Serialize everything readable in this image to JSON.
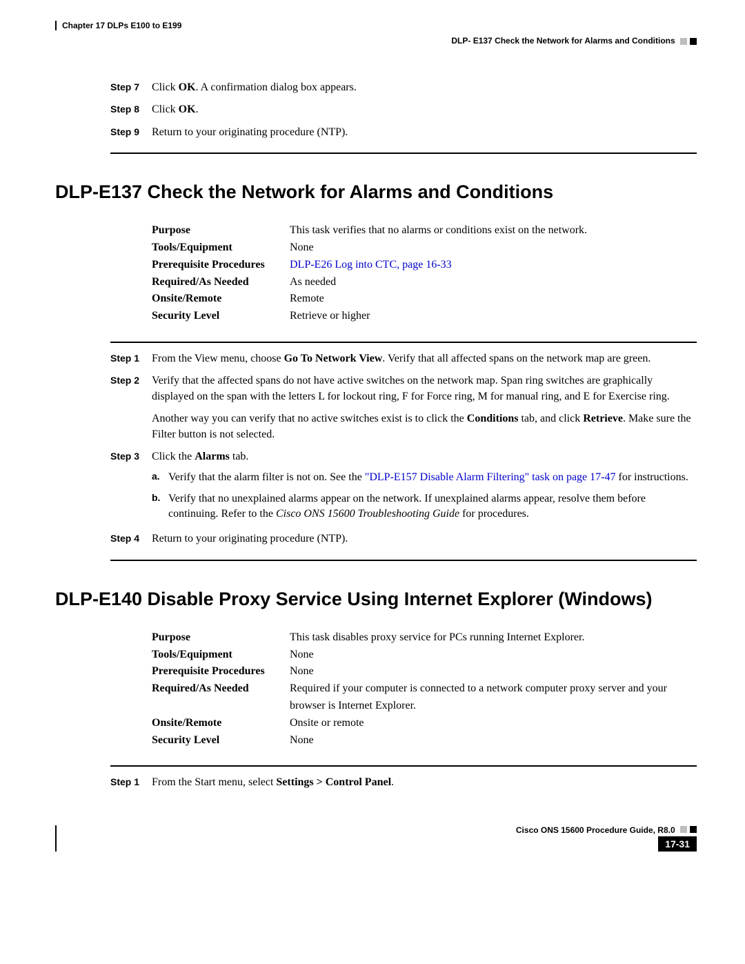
{
  "header": {
    "chapter": "Chapter 17 DLPs E100 to E199",
    "section": "DLP- E137 Check the Network for Alarms and Conditions"
  },
  "topSteps": [
    {
      "label": "Step 7",
      "html": "Click <b>OK</b>. A confirmation dialog box appears."
    },
    {
      "label": "Step 8",
      "html": "Click <b>OK</b>."
    },
    {
      "label": "Step 9",
      "html": "Return to your originating procedure (NTP)."
    }
  ],
  "sec1": {
    "title": "DLP-E137 Check the Network for Alarms and Conditions",
    "info": [
      {
        "key": "Purpose",
        "val": "This task verifies that no alarms or conditions exist on the network."
      },
      {
        "key": "Tools/Equipment",
        "val": "None"
      },
      {
        "key": "Prerequisite Procedures",
        "val": "<span class='link'>DLP-E26 Log into CTC, page 16-33</span>"
      },
      {
        "key": "Required/As Needed",
        "val": "As needed"
      },
      {
        "key": "Onsite/Remote",
        "val": "Remote"
      },
      {
        "key": "Security Level",
        "val": "Retrieve or higher"
      }
    ],
    "steps": [
      {
        "label": "Step 1",
        "html": "From the View menu, choose <b>Go To Network View</b>. Verify that all affected spans on the network map are green."
      },
      {
        "label": "Step 2",
        "html": "Verify that the affected spans do not have active switches on the network map. Span ring switches are graphically displayed on the span with the letters L for lockout ring, F for Force ring, M for manual ring, and E for Exercise ring.<div class='para'>Another way you can verify that no active switches exist is to click the <b>Conditions</b> tab, and click <b>Retrieve</b>. Make sure the Filter button is not selected.</div>"
      },
      {
        "label": "Step 3",
        "html": "Click the <b>Alarms</b> tab.",
        "subs": [
          {
            "label": "a.",
            "html": "Verify that the alarm filter is not on. See the <span class='link'>\"DLP-E157 Disable Alarm Filtering\" task on page 17-47</span> for instructions."
          },
          {
            "label": "b.",
            "html": "Verify that no unexplained alarms appear on the network. If unexplained alarms appear, resolve them before continuing. Refer to the <span class='italic'>Cisco ONS 15600 Troubleshooting Guide</span> for procedures."
          }
        ]
      },
      {
        "label": "Step 4",
        "html": "Return to your originating procedure (NTP)."
      }
    ]
  },
  "sec2": {
    "title": "DLP-E140 Disable Proxy Service Using Internet Explorer (Windows)",
    "info": [
      {
        "key": "Purpose",
        "val": "This task disables proxy service for PCs running Internet Explorer."
      },
      {
        "key": "Tools/Equipment",
        "val": "None"
      },
      {
        "key": "Prerequisite Procedures",
        "val": "None"
      },
      {
        "key": "Required/As Needed",
        "val": "Required if your computer is connected to a network computer proxy server and your browser is Internet Explorer."
      },
      {
        "key": "Onsite/Remote",
        "val": "Onsite or remote"
      },
      {
        "key": "Security Level",
        "val": "None"
      }
    ],
    "steps": [
      {
        "label": "Step 1",
        "html": "From the Start menu, select <b>Settings > Control Panel</b>."
      }
    ]
  },
  "footer": {
    "guide": "Cisco ONS 15600 Procedure Guide, R8.0",
    "page": "17-31"
  }
}
